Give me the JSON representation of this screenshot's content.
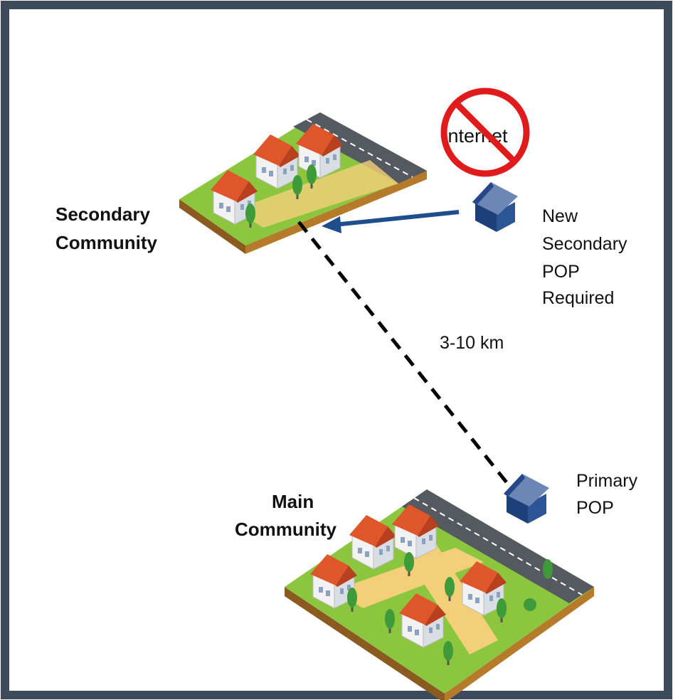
{
  "labels": {
    "secondary_community": [
      "Secondary",
      "Community"
    ],
    "main_community": [
      "Main",
      "Community"
    ],
    "internet": "Internet",
    "new_secondary_pop": [
      "New",
      "Secondary",
      "POP",
      "Required"
    ],
    "distance": "3-10 km",
    "primary_pop": [
      "Primary",
      "POP"
    ]
  }
}
